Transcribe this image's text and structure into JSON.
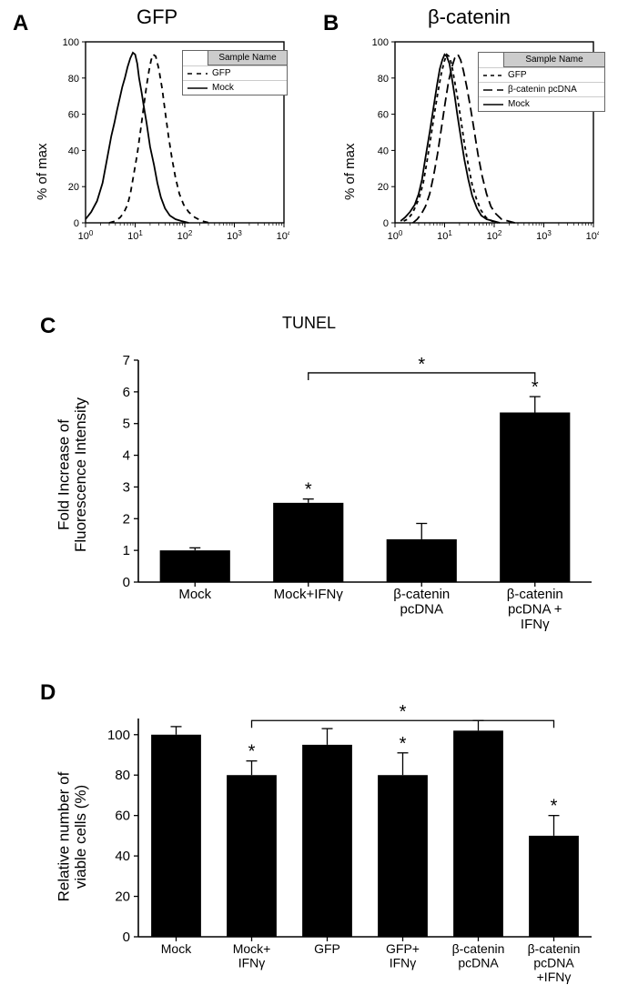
{
  "panelA": {
    "label": "A",
    "title": "GFP",
    "ylabel": "% of max",
    "legend": {
      "header": "Sample Name",
      "items": [
        "GFP",
        "Mock"
      ],
      "dashes": [
        "5,5",
        "none"
      ]
    },
    "yticks": [
      0,
      20,
      40,
      60,
      80,
      100
    ],
    "xticks_log_exp": [
      0,
      1,
      2,
      3,
      4
    ],
    "xlog_min_exp": 0,
    "xlog_max_exp": 4,
    "colors": {
      "axis": "#000000",
      "plot_bg": "#ffffff",
      "curve": "#000000"
    },
    "line_width": 1.8,
    "curves": [
      {
        "name": "Mock",
        "dash": "none",
        "points": [
          [
            1.0,
            2
          ],
          [
            1.3,
            6
          ],
          [
            1.7,
            12
          ],
          [
            2.2,
            22
          ],
          [
            2.7,
            35
          ],
          [
            3.3,
            48
          ],
          [
            3.8,
            55
          ],
          [
            4.3,
            62
          ],
          [
            5.0,
            70
          ],
          [
            5.5,
            75
          ],
          [
            6.2,
            80
          ],
          [
            7.0,
            86
          ],
          [
            8.0,
            91
          ],
          [
            9.0,
            94
          ],
          [
            10.0,
            93
          ],
          [
            11.0,
            88
          ],
          [
            12.0,
            80
          ],
          [
            13.5,
            72
          ],
          [
            15,
            64
          ],
          [
            17,
            55
          ],
          [
            20,
            42
          ],
          [
            24,
            32
          ],
          [
            28,
            22
          ],
          [
            33,
            14
          ],
          [
            40,
            8
          ],
          [
            50,
            4
          ],
          [
            65,
            2
          ],
          [
            85,
            1
          ],
          [
            120,
            0
          ]
        ]
      },
      {
        "name": "GFP",
        "dash": "6,5",
        "points": [
          [
            3,
            0
          ],
          [
            4,
            1
          ],
          [
            5,
            3
          ],
          [
            6,
            6
          ],
          [
            7,
            10
          ],
          [
            8,
            16
          ],
          [
            9,
            24
          ],
          [
            11,
            38
          ],
          [
            13,
            52
          ],
          [
            15,
            65
          ],
          [
            17,
            76
          ],
          [
            19,
            84
          ],
          [
            21,
            90
          ],
          [
            23,
            93
          ],
          [
            26,
            92
          ],
          [
            30,
            85
          ],
          [
            35,
            74
          ],
          [
            40,
            62
          ],
          [
            47,
            48
          ],
          [
            55,
            36
          ],
          [
            65,
            25
          ],
          [
            78,
            16
          ],
          [
            95,
            10
          ],
          [
            120,
            6
          ],
          [
            160,
            3
          ],
          [
            220,
            1
          ],
          [
            320,
            0
          ]
        ]
      }
    ]
  },
  "panelB": {
    "label": "B",
    "title": "β-catenin",
    "ylabel": "% of max",
    "legend": {
      "header": "Sample Name",
      "items": [
        "GFP",
        "β-catenin pcDNA",
        "Mock"
      ],
      "dashes": [
        "4,4",
        "10,5",
        "none"
      ]
    },
    "yticks": [
      0,
      20,
      40,
      60,
      80,
      100
    ],
    "xticks_log_exp": [
      0,
      1,
      2,
      3,
      4
    ],
    "xlog_min_exp": 0,
    "xlog_max_exp": 4,
    "colors": {
      "axis": "#000000",
      "plot_bg": "#ffffff",
      "curve": "#000000"
    },
    "line_width": 1.8,
    "curves": [
      {
        "name": "Mock",
        "dash": "none",
        "points": [
          [
            1.3,
            1
          ],
          [
            1.6,
            3
          ],
          [
            2.0,
            6
          ],
          [
            2.5,
            10
          ],
          [
            3.0,
            16
          ],
          [
            3.5,
            24
          ],
          [
            4.0,
            34
          ],
          [
            5.0,
            50
          ],
          [
            6.0,
            64
          ],
          [
            7.0,
            76
          ],
          [
            8.0,
            85
          ],
          [
            9.0,
            90
          ],
          [
            10.0,
            93
          ],
          [
            11.0,
            92
          ],
          [
            12.5,
            88
          ],
          [
            14,
            80
          ],
          [
            16,
            70
          ],
          [
            18,
            60
          ],
          [
            21,
            48
          ],
          [
            25,
            35
          ],
          [
            30,
            24
          ],
          [
            36,
            15
          ],
          [
            45,
            8
          ],
          [
            55,
            4
          ],
          [
            70,
            2
          ],
          [
            95,
            1
          ],
          [
            130,
            0
          ]
        ]
      },
      {
        "name": "GFP",
        "dash": "4,4",
        "points": [
          [
            1.5,
            1
          ],
          [
            1.8,
            2
          ],
          [
            2.2,
            5
          ],
          [
            2.6,
            9
          ],
          [
            3.1,
            14
          ],
          [
            3.7,
            22
          ],
          [
            4.3,
            32
          ],
          [
            5.2,
            46
          ],
          [
            6.2,
            60
          ],
          [
            7.3,
            72
          ],
          [
            8.5,
            82
          ],
          [
            9.8,
            89
          ],
          [
            11.0,
            93
          ],
          [
            12.2,
            92
          ],
          [
            13.8,
            88
          ],
          [
            15.5,
            80
          ],
          [
            18,
            70
          ],
          [
            21,
            58
          ],
          [
            25,
            44
          ],
          [
            30,
            32
          ],
          [
            36,
            21
          ],
          [
            44,
            13
          ],
          [
            54,
            7
          ],
          [
            68,
            3
          ],
          [
            90,
            1
          ],
          [
            120,
            0
          ]
        ]
      },
      {
        "name": "β-catenin pcDNA",
        "dash": "10,5",
        "points": [
          [
            2.3,
            0
          ],
          [
            2.8,
            2
          ],
          [
            3.4,
            5
          ],
          [
            4.1,
            9
          ],
          [
            5.0,
            16
          ],
          [
            6.0,
            26
          ],
          [
            7.2,
            38
          ],
          [
            8.6,
            52
          ],
          [
            10.2,
            66
          ],
          [
            12.0,
            78
          ],
          [
            14.0,
            86
          ],
          [
            16.0,
            91
          ],
          [
            18.5,
            93
          ],
          [
            21.0,
            90
          ],
          [
            24,
            84
          ],
          [
            28,
            75
          ],
          [
            33,
            64
          ],
          [
            39,
            52
          ],
          [
            47,
            38
          ],
          [
            57,
            26
          ],
          [
            70,
            16
          ],
          [
            86,
            9
          ],
          [
            108,
            5
          ],
          [
            140,
            2
          ],
          [
            190,
            1
          ],
          [
            260,
            0
          ]
        ]
      }
    ]
  },
  "panelC": {
    "label": "C",
    "title": "TUNEL",
    "ylabel": "Fold Increase of\nFluorescence Intensity",
    "yticks": [
      0,
      1,
      2,
      3,
      4,
      5,
      6,
      7
    ],
    "ylim": [
      0,
      7
    ],
    "bar_color": "#000000",
    "background_color": "#ffffff",
    "axis_color": "#000000",
    "bar_width": 0.62,
    "tick_fontsize": 15,
    "label_fontsize": 17,
    "xlabel_fontsize": 15,
    "sig_marker": "*",
    "bars": [
      {
        "label": "Mock",
        "value": 1.0,
        "err": 0.08,
        "sig": false
      },
      {
        "label": "Mock+IFNγ",
        "value": 2.5,
        "err": 0.12,
        "sig": true
      },
      {
        "label": "β-catenin\npcDNA",
        "value": 1.35,
        "err": 0.5,
        "sig": false
      },
      {
        "label": "β-catenin\npcDNA +\nIFNγ",
        "value": 5.35,
        "err": 0.5,
        "sig": true
      }
    ],
    "bracket": {
      "from_bar": 1,
      "to_bar": 3,
      "y": 6.6,
      "sig": "*"
    }
  },
  "panelD": {
    "label": "D",
    "ylabel": "Relative number of\nviable cells (%)",
    "yticks": [
      0,
      20,
      40,
      60,
      80,
      100
    ],
    "ylim": [
      0,
      108
    ],
    "bar_color": "#000000",
    "background_color": "#ffffff",
    "axis_color": "#000000",
    "bar_width": 0.66,
    "tick_fontsize": 15,
    "label_fontsize": 17,
    "xlabel_fontsize": 14,
    "sig_marker": "*",
    "bars": [
      {
        "label": "Mock",
        "value": 100,
        "err": 4,
        "sig": false
      },
      {
        "label": "Mock+\nIFNγ",
        "value": 80,
        "err": 7,
        "sig": true
      },
      {
        "label": "GFP",
        "value": 95,
        "err": 8,
        "sig": false
      },
      {
        "label": "GFP+\nIFNγ",
        "value": 80,
        "err": 11,
        "sig": true
      },
      {
        "label": "β-catenin\npcDNA",
        "value": 102,
        "err": 5,
        "sig": false
      },
      {
        "label": "β-catenin\npcDNA\n+IFNγ",
        "value": 50,
        "err": 10,
        "sig": true
      }
    ],
    "bracket": {
      "from_bar": 1,
      "to_bar": 5,
      "y": 107,
      "sig": "*"
    }
  }
}
